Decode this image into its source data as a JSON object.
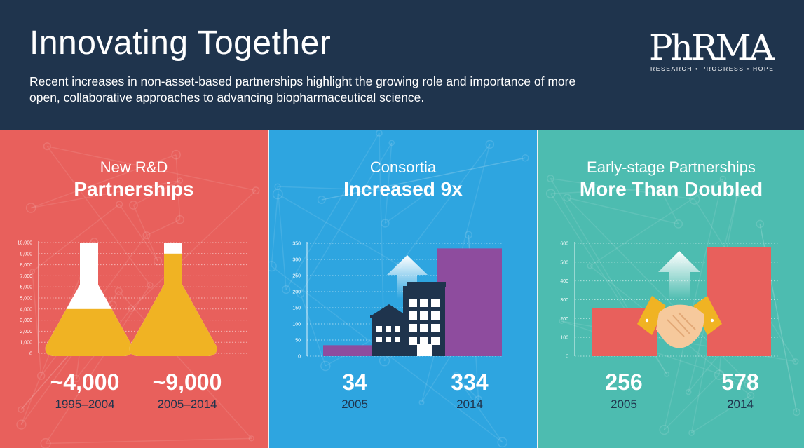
{
  "header": {
    "title": "Innovating Together",
    "subtitle": "Recent increases in non-asset-based partnerships highlight the growing role and importance of more open, collaborative approaches to advancing biopharmaceutical science.",
    "logo_text": "PhRMA",
    "logo_tagline": "RESEARCH • PROGRESS • HOPE"
  },
  "colors": {
    "header_bg": "#1f344d",
    "panel_1": "#e8605c",
    "panel_2": "#2ea5e0",
    "panel_3": "#4dbcb0",
    "flask_fill": "#f0b323",
    "consortia_bar": "#8e4c9e",
    "partnership_bar": "#e8605c"
  },
  "panels": [
    {
      "heading": "New R&D",
      "heading_bold": "Partnerships",
      "stats": [
        {
          "value": "~4,000",
          "label": "1995–2004"
        },
        {
          "value": "~9,000",
          "label": "2005–2014"
        }
      ]
    },
    {
      "heading": "Consortia",
      "heading_bold": "Increased 9x",
      "stats": [
        {
          "value": "34",
          "label": "2005"
        },
        {
          "value": "334",
          "label": "2014"
        }
      ]
    },
    {
      "heading": "Early-stage Partnerships",
      "heading_bold": "More Than Doubled",
      "stats": [
        {
          "value": "256",
          "label": "2005"
        },
        {
          "value": "578",
          "label": "2014"
        }
      ]
    }
  ],
  "chart_data": [
    {
      "type": "bar",
      "title": "New R&D Partnerships",
      "categories": [
        "1995–2004",
        "2005–2014"
      ],
      "values": [
        4000,
        9000
      ],
      "ylim": [
        0,
        10000
      ],
      "yticks": [
        "0",
        "1,000",
        "2,000",
        "3,000",
        "4,000",
        "5,000",
        "6,000",
        "7,000",
        "8,000",
        "9,000",
        "10,000"
      ],
      "grid": true,
      "style": "flask"
    },
    {
      "type": "bar",
      "title": "Consortia Increased 9x",
      "categories": [
        "2005",
        "2014"
      ],
      "values": [
        34,
        334
      ],
      "ylim": [
        0,
        350
      ],
      "yticks": [
        "0",
        "50",
        "100",
        "150",
        "200",
        "250",
        "300",
        "350"
      ],
      "grid": true
    },
    {
      "type": "bar",
      "title": "Early-stage Partnerships More Than Doubled",
      "categories": [
        "2005",
        "2014"
      ],
      "values": [
        256,
        578
      ],
      "ylim": [
        0,
        600
      ],
      "yticks": [
        "0",
        "100",
        "200",
        "300",
        "400",
        "500",
        "600"
      ],
      "grid": true
    }
  ],
  "icons": [
    "phrma-logo-icon",
    "flask-icon",
    "up-arrow-icon",
    "buildings-icon",
    "handshake-icon",
    "network-pattern-icon"
  ]
}
